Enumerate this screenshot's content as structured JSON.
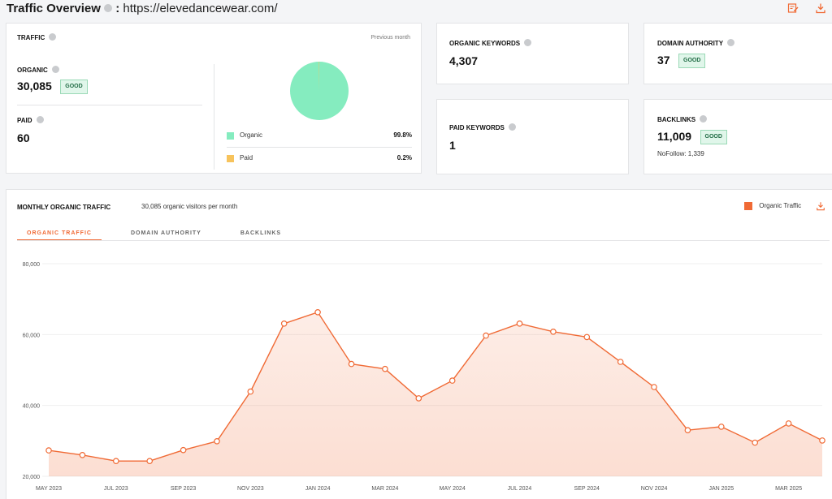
{
  "header": {
    "title": "Traffic Overview",
    "separator": ":",
    "url": "https://elevedancewear.com/",
    "icons": [
      "edit-report-icon",
      "download-icon"
    ]
  },
  "traffic": {
    "label": "TRAFFIC",
    "period": "Previous month",
    "organic_label": "ORGANIC",
    "organic_value": "30,085",
    "organic_badge": "GOOD",
    "paid_label": "PAID",
    "paid_value": "60",
    "legend": [
      {
        "name": "Organic",
        "pct": "99.8%",
        "color": "#85ecbf"
      },
      {
        "name": "Paid",
        "pct": "0.2%",
        "color": "#f7c35c"
      }
    ],
    "pie_share_organic": 0.998
  },
  "organic_keywords": {
    "label": "ORGANIC KEYWORDS",
    "value": "4,307"
  },
  "domain_authority": {
    "label": "DOMAIN AUTHORITY",
    "value": "37",
    "badge": "GOOD"
  },
  "paid_keywords": {
    "label": "PAID KEYWORDS",
    "value": "1"
  },
  "backlinks": {
    "label": "BACKLINKS",
    "value": "11,009",
    "badge": "GOOD",
    "nofollow": "NoFollow: 1,339"
  },
  "monthly": {
    "title": "MONTHLY ORGANIC TRAFFIC",
    "subtitle": "30,085 organic visitors per month",
    "legend_label": "Organic Traffic",
    "legend_color": "#f06a35",
    "tabs": [
      "ORGANIC TRAFFIC",
      "DOMAIN AUTHORITY",
      "BACKLINKS"
    ],
    "active_tab": 0
  },
  "chart_data": {
    "type": "area",
    "title": "",
    "xlabel": "",
    "ylabel": "",
    "ylim": [
      20000,
      80000
    ],
    "yticks": [
      20000,
      40000,
      60000,
      80000
    ],
    "ytick_labels": [
      "20,000",
      "40,000",
      "60,000",
      "80,000"
    ],
    "xtick_labels": [
      "MAY 2023",
      "JUL 2023",
      "SEP 2023",
      "NOV 2023",
      "JAN 2024",
      "MAR 2024",
      "MAY 2024",
      "JUL 2024",
      "SEP 2024",
      "NOV 2024",
      "JAN 2025",
      "MAR 2025"
    ],
    "x": [
      "MAY 2023",
      "JUN 2023",
      "JUL 2023",
      "AUG 2023",
      "SEP 2023",
      "OCT 2023",
      "NOV 2023",
      "DEC 2023",
      "JAN 2024",
      "FEB 2024",
      "MAR 2024",
      "APR 2024",
      "MAY 2024",
      "JUN 2024",
      "JUL 2024",
      "AUG 2024",
      "SEP 2024",
      "OCT 2024",
      "NOV 2024",
      "DEC 2024",
      "JAN 2025",
      "FEB 2025",
      "MAR 2025",
      "APR 2025"
    ],
    "series": [
      {
        "name": "Organic Traffic",
        "color": "#f06a35",
        "values": [
          27300,
          26000,
          24300,
          24300,
          27400,
          29900,
          43900,
          63100,
          66300,
          51700,
          50300,
          42000,
          47000,
          59700,
          63100,
          60800,
          59300,
          52300,
          45200,
          33000,
          34000,
          29500,
          34900,
          30100
        ]
      }
    ],
    "grid": true
  }
}
